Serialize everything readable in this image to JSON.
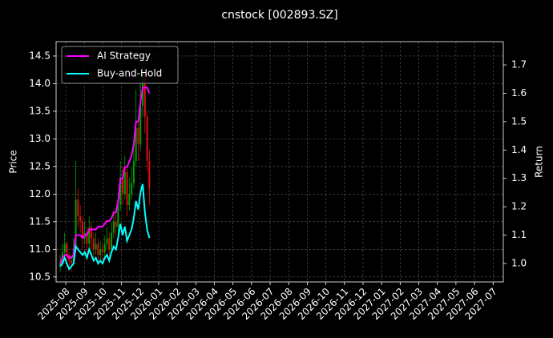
{
  "chart_data": {
    "type": "candlestick",
    "title": "cnstock [002893.SZ]",
    "y_label": "Price",
    "y2_label": "Return",
    "x": [
      -0.3,
      -0.18,
      -0.06,
      0.06,
      0.18,
      0.3,
      0.42,
      0.54,
      0.66,
      0.78,
      0.9,
      1.02,
      1.14,
      1.26,
      1.38,
      1.5,
      1.62,
      1.74,
      1.86,
      1.98,
      2.1,
      2.22,
      2.34,
      2.46,
      2.58,
      2.7,
      2.82,
      2.94,
      3.06,
      3.18,
      3.3,
      3.42,
      3.54,
      3.66,
      3.78,
      3.9,
      4.02,
      4.14,
      4.26,
      4.38,
      4.5
    ],
    "open": [
      10.7,
      10.75,
      10.95,
      11.1,
      10.9,
      10.8,
      10.75,
      11.0,
      11.9,
      11.6,
      11.5,
      11.2,
      11.3,
      11.1,
      11.4,
      11.2,
      11.0,
      11.1,
      10.9,
      11.0,
      10.95,
      11.1,
      11.2,
      11.0,
      11.3,
      11.5,
      11.4,
      11.8,
      12.3,
      12.0,
      12.4,
      11.8,
      12.0,
      12.2,
      12.6,
      13.2,
      12.9,
      13.6,
      14.2,
      13.4,
      12.6
    ],
    "high": [
      10.9,
      11.1,
      11.3,
      11.15,
      10.95,
      10.9,
      11.2,
      12.6,
      12.1,
      11.8,
      11.6,
      11.5,
      11.4,
      11.6,
      11.5,
      11.3,
      11.3,
      11.2,
      11.15,
      11.1,
      11.25,
      11.4,
      11.3,
      11.5,
      11.7,
      11.7,
      12.0,
      12.6,
      12.5,
      12.7,
      12.5,
      12.3,
      12.5,
      13.0,
      13.9,
      13.4,
      14.0,
      14.5,
      14.3,
      13.5,
      12.8
    ],
    "low": [
      10.6,
      10.7,
      10.85,
      10.8,
      10.65,
      10.6,
      10.7,
      10.95,
      11.4,
      11.3,
      11.0,
      11.1,
      10.9,
      11.0,
      11.0,
      10.85,
      10.9,
      10.75,
      10.8,
      10.8,
      10.85,
      11.0,
      10.85,
      10.95,
      11.2,
      11.25,
      11.3,
      11.7,
      11.8,
      11.9,
      11.6,
      11.7,
      11.9,
      12.1,
      12.5,
      12.6,
      12.8,
      13.4,
      13.1,
      12.4,
      11.8
    ],
    "close": [
      10.75,
      10.95,
      11.1,
      10.9,
      10.8,
      10.75,
      11.0,
      11.9,
      11.6,
      11.5,
      11.2,
      11.3,
      11.1,
      11.4,
      11.2,
      11.0,
      11.1,
      10.9,
      11.0,
      10.95,
      11.1,
      11.2,
      11.0,
      11.3,
      11.5,
      11.4,
      11.8,
      12.3,
      12.0,
      12.4,
      11.8,
      12.0,
      12.2,
      12.6,
      13.2,
      12.9,
      13.6,
      14.2,
      13.4,
      12.6,
      12.1
    ],
    "up_color": "#00a000",
    "down_color": "#e01010",
    "series": [
      {
        "name": "AI Strategy",
        "color": "#ff00ff",
        "axis": "y2",
        "values": [
          1.0,
          1.02,
          1.03,
          1.03,
          1.02,
          1.02,
          1.03,
          1.1,
          1.1,
          1.1,
          1.09,
          1.1,
          1.1,
          1.12,
          1.12,
          1.12,
          1.12,
          1.13,
          1.13,
          1.13,
          1.14,
          1.15,
          1.15,
          1.16,
          1.18,
          1.18,
          1.22,
          1.3,
          1.3,
          1.34,
          1.34,
          1.36,
          1.38,
          1.42,
          1.5,
          1.5,
          1.57,
          1.62,
          1.62,
          1.62,
          1.6
        ]
      },
      {
        "name": "Buy-and-Hold",
        "color": "#00ffff",
        "axis": "y2",
        "values": [
          0.99,
          1.0,
          1.02,
          1.0,
          0.98,
          0.99,
          1.0,
          1.06,
          1.05,
          1.04,
          1.03,
          1.04,
          1.02,
          1.05,
          1.03,
          1.01,
          1.02,
          1.0,
          1.01,
          1.0,
          1.02,
          1.03,
          1.01,
          1.04,
          1.06,
          1.05,
          1.09,
          1.14,
          1.1,
          1.13,
          1.08,
          1.1,
          1.12,
          1.16,
          1.22,
          1.19,
          1.25,
          1.28,
          1.18,
          1.12,
          1.09
        ]
      }
    ],
    "xlim": [
      -0.52,
      23.55
    ],
    "xticks": [
      {
        "value": 0,
        "label": "2025-08"
      },
      {
        "value": 1,
        "label": "2025-09"
      },
      {
        "value": 2,
        "label": "2025-10"
      },
      {
        "value": 3,
        "label": "2025-11"
      },
      {
        "value": 4,
        "label": "2025-12"
      },
      {
        "value": 5,
        "label": "2026-01"
      },
      {
        "value": 6,
        "label": "2026-02"
      },
      {
        "value": 7,
        "label": "2026-03"
      },
      {
        "value": 8,
        "label": "2026-04"
      },
      {
        "value": 9,
        "label": "2026-05"
      },
      {
        "value": 10,
        "label": "2026-06"
      },
      {
        "value": 11,
        "label": "2026-07"
      },
      {
        "value": 12,
        "label": "2026-08"
      },
      {
        "value": 13,
        "label": "2026-09"
      },
      {
        "value": 14,
        "label": "2026-10"
      },
      {
        "value": 15,
        "label": "2026-11"
      },
      {
        "value": 16,
        "label": "2026-12"
      },
      {
        "value": 17,
        "label": "2027-01"
      },
      {
        "value": 18,
        "label": "2027-02"
      },
      {
        "value": 19,
        "label": "2027-03"
      },
      {
        "value": 20,
        "label": "2027-04"
      },
      {
        "value": 21,
        "label": "2027-05"
      },
      {
        "value": 22,
        "label": "2027-06"
      },
      {
        "value": 23,
        "label": "2027-07"
      }
    ],
    "ylim": [
      10.41,
      14.76
    ],
    "yticks": [
      10.5,
      {
        "value": 11,
        "label": "11.0"
      },
      11.5,
      {
        "value": 12,
        "label": "12.0"
      },
      12.5,
      {
        "value": 13,
        "label": "13.0"
      },
      13.5,
      {
        "value": 14,
        "label": "14.0"
      },
      14.5
    ],
    "y2lim": [
      0.935,
      1.782
    ],
    "y2ticks": [
      {
        "value": 1,
        "label": "1.0"
      },
      1.1,
      1.2,
      1.3,
      1.4,
      1.5,
      1.6,
      1.7
    ],
    "grid": true,
    "legend_loc": "upper left"
  }
}
